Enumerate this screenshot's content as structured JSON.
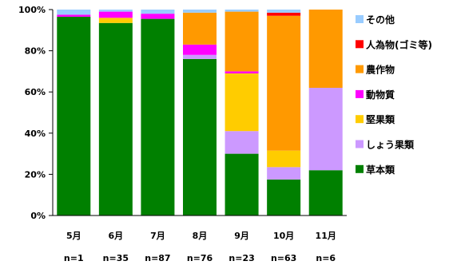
{
  "chart_data": {
    "type": "bar",
    "stacked": true,
    "percent": true,
    "categories": [
      "5月",
      "6月",
      "7月",
      "8月",
      "9月",
      "10月",
      "11月"
    ],
    "sample_sizes": [
      "n=1",
      "n=35",
      "n=87",
      "n=76",
      "n=23",
      "n=63",
      "n=6"
    ],
    "ylim": [
      0,
      100
    ],
    "yticks": [
      "0%",
      "20%",
      "40%",
      "60%",
      "80%",
      "100%"
    ],
    "legend_position": "right",
    "grid": false,
    "series": [
      {
        "name": "草本類",
        "color": "#008000",
        "values": [
          96.5,
          93.5,
          95.5,
          76,
          30,
          17.5,
          22
        ]
      },
      {
        "name": "しょう果類",
        "color": "#cc99ff",
        "values": [
          0,
          0,
          0,
          2,
          11,
          6,
          40
        ]
      },
      {
        "name": "堅果類",
        "color": "#ffcc00",
        "values": [
          0,
          2.5,
          0,
          0,
          28,
          8,
          0
        ]
      },
      {
        "name": "動物質",
        "color": "#ff00ff",
        "values": [
          1,
          3,
          2.5,
          5,
          1,
          0,
          0
        ]
      },
      {
        "name": "農作物",
        "color": "#ff9900",
        "values": [
          0,
          0,
          0,
          15.5,
          29,
          65.5,
          38
        ]
      },
      {
        "name": "人為物(ゴミ等)",
        "color": "#ff0000",
        "values": [
          0,
          0,
          0,
          0,
          0,
          1.5,
          0
        ]
      },
      {
        "name": "その他",
        "color": "#99ccff",
        "values": [
          2.5,
          1,
          2,
          1.5,
          1,
          1.5,
          0
        ]
      }
    ]
  }
}
